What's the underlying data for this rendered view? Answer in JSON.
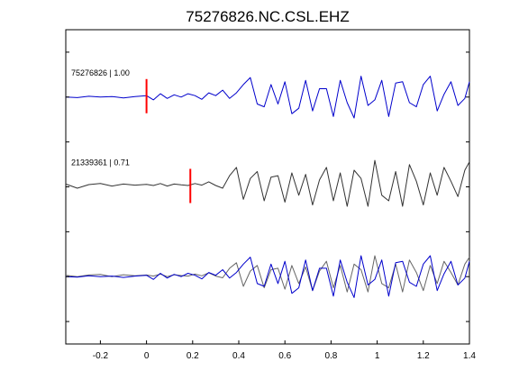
{
  "figure": {
    "title": "75276826.NC.CSL.EHZ"
  },
  "chart_data": {
    "type": "line",
    "title": "75276826.NC.CSL.EHZ",
    "xlabel": "",
    "ylabel": "",
    "xlim": [
      -0.35,
      1.4
    ],
    "x_ticks": [
      -0.2,
      0,
      0.2,
      0.4,
      0.6,
      0.8,
      1,
      1.2,
      1.4
    ],
    "x_tick_labels": [
      "-0.2",
      "0",
      "0.2",
      "0.4",
      "0.6",
      "0.8",
      "1",
      "1.2",
      "1.4"
    ],
    "ylim": [
      0,
      7
    ],
    "y_ticks": [
      0.5,
      1.5,
      2.5,
      3.5,
      4.5,
      5.5,
      6.5
    ],
    "grid": false,
    "legend": "none",
    "traces": [
      {
        "label": "75276826 | 1.00",
        "baseline": 5.5,
        "color": "#0000cc",
        "pick_x": 0.0,
        "x": [
          -0.35,
          -0.3,
          -0.25,
          -0.2,
          -0.15,
          -0.1,
          -0.05,
          0.0,
          0.03,
          0.06,
          0.09,
          0.12,
          0.15,
          0.18,
          0.21,
          0.24,
          0.27,
          0.3,
          0.33,
          0.36,
          0.39,
          0.42,
          0.45,
          0.48,
          0.51,
          0.54,
          0.57,
          0.6,
          0.63,
          0.66,
          0.69,
          0.72,
          0.75,
          0.78,
          0.81,
          0.84,
          0.87,
          0.9,
          0.93,
          0.96,
          0.99,
          1.02,
          1.05,
          1.08,
          1.11,
          1.14,
          1.17,
          1.2,
          1.23,
          1.26,
          1.29,
          1.32,
          1.35,
          1.38,
          1.4
        ],
        "y": [
          0.0,
          -0.02,
          0.03,
          0.0,
          0.02,
          -0.03,
          0.02,
          0.05,
          -0.1,
          0.12,
          -0.05,
          0.08,
          0.0,
          0.12,
          0.05,
          -0.08,
          0.15,
          0.05,
          0.25,
          -0.05,
          0.15,
          0.45,
          0.7,
          -0.25,
          -0.35,
          0.45,
          -0.25,
          0.55,
          -0.6,
          -0.4,
          0.6,
          -0.5,
          0.3,
          0.3,
          -0.7,
          0.6,
          -0.2,
          -0.75,
          0.75,
          -0.3,
          -0.1,
          0.6,
          -0.7,
          0.5,
          0.55,
          -0.2,
          -0.35,
          0.45,
          0.75,
          -0.5,
          0.1,
          0.55,
          -0.3,
          -0.05,
          0.55
        ]
      },
      {
        "label": "21339361 | 0.71",
        "baseline": 3.5,
        "color": "#333333",
        "pick_x": 0.19,
        "x": [
          -0.35,
          -0.3,
          -0.25,
          -0.2,
          -0.15,
          -0.1,
          -0.05,
          0.0,
          0.03,
          0.06,
          0.09,
          0.12,
          0.15,
          0.18,
          0.21,
          0.24,
          0.27,
          0.3,
          0.33,
          0.36,
          0.39,
          0.42,
          0.45,
          0.48,
          0.51,
          0.54,
          0.57,
          0.6,
          0.63,
          0.66,
          0.69,
          0.72,
          0.75,
          0.78,
          0.81,
          0.84,
          0.87,
          0.9,
          0.93,
          0.96,
          0.99,
          1.02,
          1.05,
          1.08,
          1.11,
          1.14,
          1.17,
          1.2,
          1.23,
          1.26,
          1.29,
          1.32,
          1.35,
          1.38,
          1.4
        ],
        "y": [
          0.1,
          -0.05,
          0.08,
          0.12,
          0.03,
          0.1,
          0.06,
          0.09,
          0.05,
          0.12,
          0.03,
          0.1,
          0.07,
          0.05,
          0.12,
          0.06,
          0.18,
          0.05,
          -0.05,
          0.4,
          0.7,
          -0.45,
          0.3,
          0.55,
          -0.5,
          0.35,
          0.4,
          -0.55,
          0.5,
          -0.3,
          0.45,
          -0.65,
          0.25,
          0.7,
          -0.5,
          0.5,
          -0.7,
          0.6,
          0.3,
          -0.7,
          0.95,
          -0.3,
          -0.5,
          0.55,
          -0.7,
          0.8,
          0.2,
          -0.65,
          0.5,
          -0.3,
          0.7,
          0.2,
          -0.35,
          0.6,
          0.9
        ]
      },
      {
        "label": "",
        "baseline": 1.5,
        "color": "#0000cc",
        "x": [
          -0.35,
          -0.3,
          -0.25,
          -0.2,
          -0.15,
          -0.1,
          -0.05,
          0.0,
          0.03,
          0.06,
          0.09,
          0.12,
          0.15,
          0.18,
          0.21,
          0.24,
          0.27,
          0.3,
          0.33,
          0.36,
          0.39,
          0.42,
          0.45,
          0.48,
          0.51,
          0.54,
          0.57,
          0.6,
          0.63,
          0.66,
          0.69,
          0.72,
          0.75,
          0.78,
          0.81,
          0.84,
          0.87,
          0.9,
          0.93,
          0.96,
          0.99,
          1.02,
          1.05,
          1.08,
          1.11,
          1.14,
          1.17,
          1.2,
          1.23,
          1.26,
          1.29,
          1.32,
          1.35,
          1.38,
          1.4
        ],
        "y": [
          0.0,
          -0.02,
          0.03,
          0.0,
          0.02,
          -0.03,
          0.02,
          0.05,
          -0.1,
          0.12,
          -0.05,
          0.08,
          0.0,
          0.12,
          0.05,
          -0.08,
          0.15,
          0.05,
          0.25,
          -0.05,
          0.15,
          0.45,
          0.7,
          -0.25,
          -0.35,
          0.45,
          -0.25,
          0.55,
          -0.6,
          -0.4,
          0.6,
          -0.5,
          0.3,
          0.3,
          -0.7,
          0.6,
          -0.2,
          -0.75,
          0.75,
          -0.3,
          -0.1,
          0.6,
          -0.7,
          0.5,
          0.55,
          -0.2,
          -0.35,
          0.45,
          0.75,
          -0.5,
          0.1,
          0.55,
          -0.3,
          -0.05,
          0.55
        ]
      },
      {
        "label": "",
        "baseline": 1.5,
        "color": "#666666",
        "x": [
          -0.35,
          -0.3,
          -0.25,
          -0.2,
          -0.15,
          -0.1,
          -0.05,
          0.0,
          0.03,
          0.06,
          0.09,
          0.12,
          0.15,
          0.18,
          0.21,
          0.24,
          0.27,
          0.3,
          0.33,
          0.36,
          0.39,
          0.42,
          0.45,
          0.48,
          0.51,
          0.54,
          0.57,
          0.6,
          0.63,
          0.66,
          0.69,
          0.72,
          0.75,
          0.78,
          0.81,
          0.84,
          0.87,
          0.9,
          0.93,
          0.96,
          0.99,
          1.02,
          1.05,
          1.08,
          1.11,
          1.14,
          1.17,
          1.2,
          1.23,
          1.26,
          1.29,
          1.32,
          1.35,
          1.38,
          1.4
        ],
        "y": [
          0.05,
          0.0,
          0.06,
          0.08,
          0.0,
          0.07,
          0.03,
          0.06,
          0.02,
          0.09,
          0.0,
          0.07,
          0.04,
          0.02,
          0.09,
          0.03,
          0.14,
          0.02,
          -0.04,
          0.3,
          0.5,
          -0.35,
          0.2,
          0.4,
          -0.4,
          0.25,
          0.3,
          -0.45,
          0.4,
          -0.25,
          0.35,
          -0.5,
          0.2,
          0.55,
          -0.4,
          0.4,
          -0.55,
          0.45,
          0.25,
          -0.55,
          0.75,
          -0.25,
          -0.4,
          0.45,
          -0.55,
          0.6,
          0.15,
          -0.5,
          0.4,
          -0.25,
          0.55,
          0.15,
          -0.3,
          0.45,
          0.7
        ]
      }
    ]
  }
}
